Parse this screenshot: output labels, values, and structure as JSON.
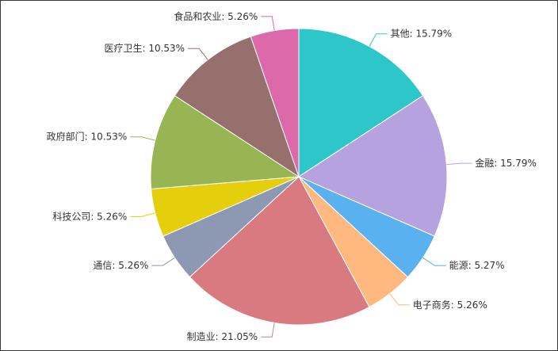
{
  "chart_data": {
    "type": "pie",
    "start_angle_deg": 90,
    "clockwise": true,
    "slices": [
      {
        "name": "其他",
        "value": 15.79,
        "label": "其他: 15.79%",
        "color": "#2ec7c9",
        "side": "right"
      },
      {
        "name": "金融",
        "value": 15.79,
        "label": "金融: 15.79%",
        "color": "#b6a2de",
        "side": "right"
      },
      {
        "name": "能源",
        "value": 5.27,
        "label": "能源: 5.27%",
        "color": "#5ab1ef",
        "side": "right"
      },
      {
        "name": "电子商务",
        "value": 5.26,
        "label": "电子商务: 5.26%",
        "color": "#ffb980",
        "side": "right"
      },
      {
        "name": "制造业",
        "value": 21.05,
        "label": "制造业: 21.05%",
        "color": "#d87a80",
        "side": "left"
      },
      {
        "name": "通信",
        "value": 5.26,
        "label": "通信: 5.26%",
        "color": "#8d98b3",
        "side": "left"
      },
      {
        "name": "科技公司",
        "value": 5.26,
        "label": "科技公司: 5.26%",
        "color": "#e5cf0d",
        "side": "left"
      },
      {
        "name": "政府部门",
        "value": 10.53,
        "label": "政府部门: 10.53%",
        "color": "#97b552",
        "side": "left"
      },
      {
        "name": "医疗卫生",
        "value": 10.53,
        "label": "医疗卫生: 10.53%",
        "color": "#95706d",
        "side": "left"
      },
      {
        "name": "食品和农业",
        "value": 5.26,
        "label": "食品和农业: 5.26%",
        "color": "#dc69aa",
        "side": "left"
      }
    ],
    "legend": "none",
    "title": ""
  }
}
